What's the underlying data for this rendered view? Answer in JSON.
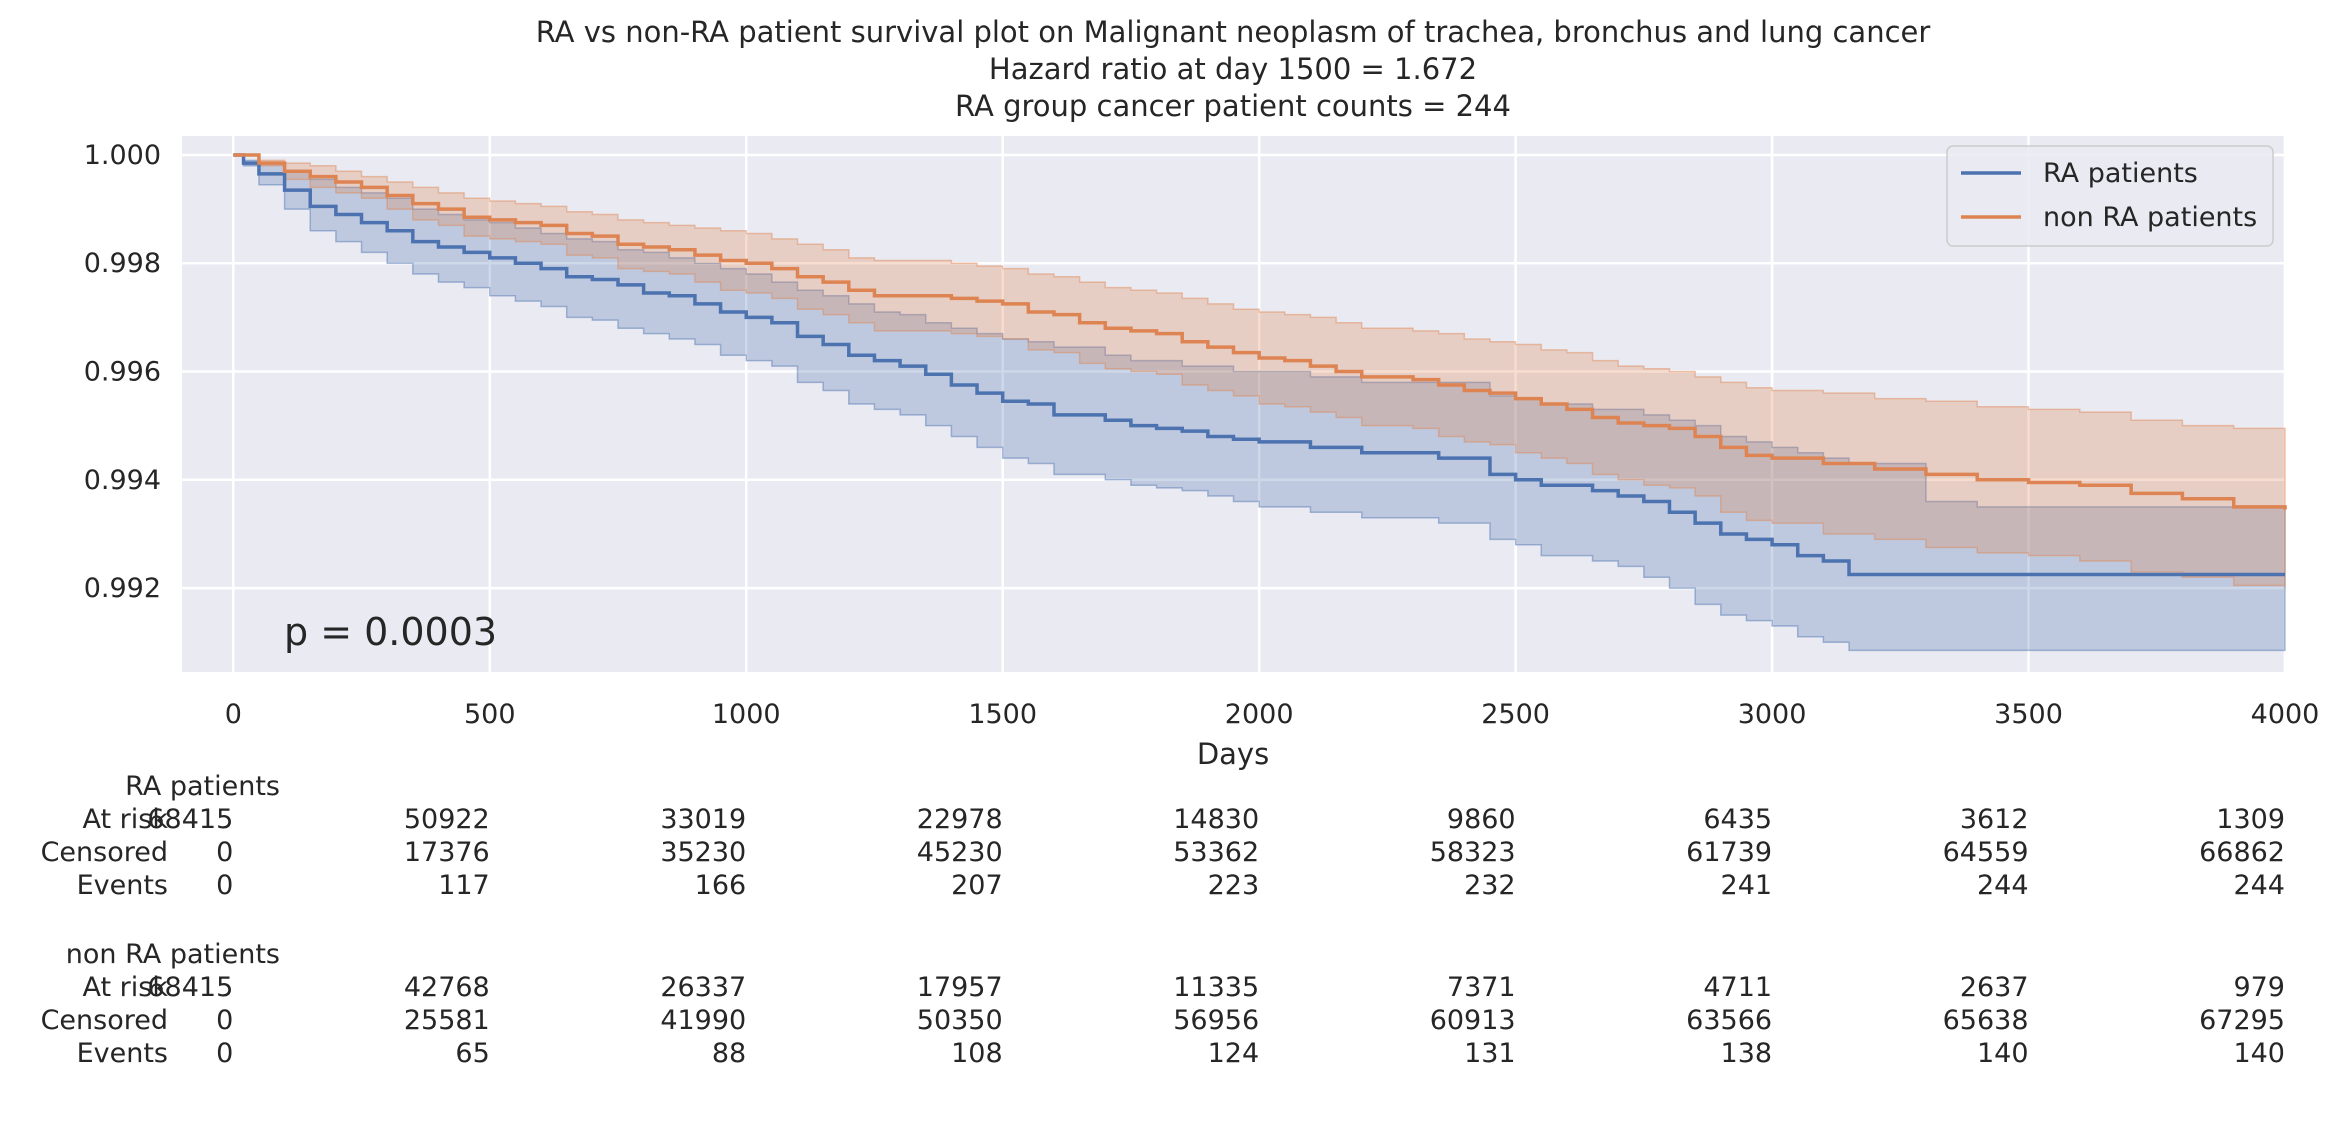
{
  "chart_data": {
    "type": "line",
    "title": [
      "RA vs non-RA patient survival plot on Malignant neoplasm of trachea, bronchus and lung cancer",
      "Hazard ratio at day 1500 = 1.672",
      "RA group cancer patient counts = 244"
    ],
    "xlabel": "Days",
    "ylabel": "",
    "xlim": [
      -100,
      4000
    ],
    "ylim": [
      0.99045,
      1.00035
    ],
    "x_ticks": [
      0,
      500,
      1000,
      1500,
      2000,
      2500,
      3000,
      3500,
      4000
    ],
    "y_ticks": [
      0.992,
      0.994,
      0.996,
      0.998,
      1.0
    ],
    "y_tick_labels": [
      "0.992",
      "0.994",
      "0.996",
      "0.998",
      "1.000"
    ],
    "grid": true,
    "legend_position": "top-right",
    "annotation": "p = 0.0003",
    "colors": {
      "background": "#eaeaf2",
      "grid": "#ffffff",
      "ra": "#4c72b0",
      "non_ra": "#dd8452"
    },
    "series": [
      {
        "name": "RA patients",
        "color": "#4c72b0",
        "x": [
          0,
          20,
          50,
          100,
          150,
          200,
          250,
          300,
          350,
          400,
          450,
          500,
          550,
          600,
          650,
          700,
          750,
          800,
          850,
          900,
          950,
          1000,
          1050,
          1100,
          1150,
          1200,
          1250,
          1300,
          1350,
          1400,
          1450,
          1500,
          1550,
          1600,
          1650,
          1700,
          1750,
          1800,
          1850,
          1900,
          1950,
          2000,
          2100,
          2200,
          2300,
          2350,
          2450,
          2500,
          2550,
          2650,
          2700,
          2750,
          2800,
          2850,
          2900,
          2950,
          3000,
          3050,
          3100,
          3150,
          3200,
          3300,
          3400,
          3500,
          3600,
          3700,
          3800,
          3900,
          4000
        ],
        "y": [
          1.0,
          0.99985,
          0.99965,
          0.99935,
          0.99905,
          0.9989,
          0.99875,
          0.9986,
          0.9984,
          0.9983,
          0.9982,
          0.9981,
          0.998,
          0.9979,
          0.99775,
          0.9977,
          0.9976,
          0.99745,
          0.9974,
          0.99725,
          0.9971,
          0.997,
          0.9969,
          0.99665,
          0.9965,
          0.9963,
          0.9962,
          0.9961,
          0.99595,
          0.99575,
          0.9956,
          0.99545,
          0.9954,
          0.9952,
          0.9952,
          0.9951,
          0.995,
          0.99495,
          0.9949,
          0.9948,
          0.99475,
          0.9947,
          0.9946,
          0.9945,
          0.9945,
          0.9944,
          0.9941,
          0.994,
          0.9939,
          0.9938,
          0.9937,
          0.9936,
          0.9934,
          0.9932,
          0.993,
          0.9929,
          0.9928,
          0.9926,
          0.9925,
          0.99225,
          0.99225,
          0.99225,
          0.99225,
          0.99225,
          0.99225,
          0.99225,
          0.99225,
          0.99225,
          0.99225
        ],
        "ci_upper": [
          1.0,
          0.9999,
          0.99985,
          0.9997,
          0.99955,
          0.9994,
          0.9993,
          0.9992,
          0.999,
          0.9989,
          0.9988,
          0.99875,
          0.99865,
          0.99855,
          0.99845,
          0.9984,
          0.99825,
          0.9982,
          0.9981,
          0.998,
          0.9979,
          0.9978,
          0.99765,
          0.9975,
          0.9974,
          0.99725,
          0.9971,
          0.99705,
          0.9969,
          0.9968,
          0.9967,
          0.9966,
          0.99655,
          0.99645,
          0.99645,
          0.9963,
          0.9962,
          0.9962,
          0.9961,
          0.9961,
          0.996,
          0.996,
          0.9959,
          0.9958,
          0.9958,
          0.9958,
          0.99555,
          0.9955,
          0.9954,
          0.9953,
          0.9953,
          0.9952,
          0.9951,
          0.995,
          0.9948,
          0.9947,
          0.9946,
          0.9945,
          0.9944,
          0.9943,
          0.9943,
          0.9936,
          0.9935,
          0.9935,
          0.9935,
          0.9935,
          0.9935,
          0.9935,
          0.9935
        ],
        "ci_lower": [
          1.0,
          0.9998,
          0.99945,
          0.999,
          0.9986,
          0.9984,
          0.9982,
          0.998,
          0.9978,
          0.99765,
          0.99755,
          0.9974,
          0.9973,
          0.9972,
          0.997,
          0.99695,
          0.9968,
          0.9967,
          0.9966,
          0.9965,
          0.9963,
          0.9962,
          0.9961,
          0.9958,
          0.99565,
          0.9954,
          0.9953,
          0.9952,
          0.995,
          0.9948,
          0.9946,
          0.9944,
          0.9943,
          0.9941,
          0.9941,
          0.994,
          0.9939,
          0.99385,
          0.9938,
          0.9937,
          0.9936,
          0.9935,
          0.9934,
          0.9933,
          0.9933,
          0.9932,
          0.9929,
          0.9928,
          0.9926,
          0.9925,
          0.9924,
          0.9922,
          0.992,
          0.9917,
          0.9915,
          0.9914,
          0.9913,
          0.9911,
          0.991,
          0.99085,
          0.99085,
          0.99085,
          0.99085,
          0.99085,
          0.99085,
          0.99085,
          0.99085,
          0.99085,
          0.99085
        ]
      },
      {
        "name": "non RA patients",
        "color": "#dd8452",
        "x": [
          0,
          50,
          100,
          150,
          200,
          250,
          300,
          350,
          400,
          450,
          500,
          550,
          600,
          650,
          700,
          750,
          800,
          850,
          900,
          950,
          1000,
          1050,
          1100,
          1150,
          1200,
          1250,
          1300,
          1350,
          1400,
          1450,
          1500,
          1550,
          1600,
          1650,
          1700,
          1750,
          1800,
          1850,
          1900,
          1950,
          2000,
          2050,
          2100,
          2150,
          2200,
          2250,
          2300,
          2350,
          2400,
          2450,
          2500,
          2550,
          2600,
          2650,
          2700,
          2750,
          2800,
          2850,
          2900,
          2950,
          3000,
          3100,
          3200,
          3300,
          3400,
          3500,
          3600,
          3700,
          3800,
          3900,
          4000
        ],
        "y": [
          1.0,
          0.99985,
          0.9997,
          0.9996,
          0.9995,
          0.9994,
          0.99925,
          0.9991,
          0.999,
          0.99885,
          0.9988,
          0.99875,
          0.9987,
          0.99855,
          0.9985,
          0.99835,
          0.9983,
          0.99825,
          0.99815,
          0.99805,
          0.998,
          0.9979,
          0.99775,
          0.99765,
          0.9975,
          0.9974,
          0.9974,
          0.9974,
          0.99735,
          0.9973,
          0.99725,
          0.9971,
          0.99705,
          0.9969,
          0.9968,
          0.99675,
          0.9967,
          0.99655,
          0.99645,
          0.99635,
          0.99625,
          0.9962,
          0.9961,
          0.996,
          0.9959,
          0.9959,
          0.99585,
          0.99575,
          0.99565,
          0.9956,
          0.9955,
          0.9954,
          0.9953,
          0.99515,
          0.99505,
          0.995,
          0.99495,
          0.9948,
          0.9946,
          0.99445,
          0.9944,
          0.9943,
          0.9942,
          0.9941,
          0.994,
          0.99395,
          0.9939,
          0.99375,
          0.99365,
          0.9935,
          0.99345
        ],
        "ci_upper": [
          1.0,
          0.9999,
          0.99985,
          0.9998,
          0.9997,
          0.9996,
          0.9995,
          0.9994,
          0.9993,
          0.9992,
          0.99915,
          0.9991,
          0.99905,
          0.99895,
          0.9989,
          0.9988,
          0.99875,
          0.9987,
          0.99865,
          0.9986,
          0.99855,
          0.99845,
          0.99835,
          0.99825,
          0.9981,
          0.99805,
          0.99805,
          0.99805,
          0.998,
          0.99795,
          0.9979,
          0.9978,
          0.99775,
          0.99765,
          0.99755,
          0.9975,
          0.99745,
          0.99735,
          0.99725,
          0.99715,
          0.9971,
          0.99705,
          0.997,
          0.9969,
          0.9968,
          0.9968,
          0.99675,
          0.9967,
          0.9966,
          0.99655,
          0.9965,
          0.9964,
          0.99635,
          0.9962,
          0.9961,
          0.99605,
          0.996,
          0.9959,
          0.9958,
          0.9957,
          0.99565,
          0.9956,
          0.9955,
          0.99545,
          0.99535,
          0.9953,
          0.99525,
          0.9951,
          0.995,
          0.99495,
          0.9949
        ],
        "ci_lower": [
          1.0,
          0.9998,
          0.99955,
          0.9994,
          0.9993,
          0.9992,
          0.999,
          0.9988,
          0.9987,
          0.9985,
          0.99845,
          0.9984,
          0.99835,
          0.99815,
          0.9981,
          0.9979,
          0.99785,
          0.9978,
          0.99765,
          0.9975,
          0.99745,
          0.99735,
          0.99715,
          0.99705,
          0.9969,
          0.99675,
          0.99675,
          0.99675,
          0.9967,
          0.99665,
          0.9966,
          0.9964,
          0.99635,
          0.99615,
          0.99605,
          0.996,
          0.99595,
          0.99575,
          0.99565,
          0.99555,
          0.9954,
          0.99535,
          0.99525,
          0.99515,
          0.995,
          0.995,
          0.99495,
          0.9948,
          0.9947,
          0.99465,
          0.9945,
          0.9944,
          0.9943,
          0.9941,
          0.994,
          0.9939,
          0.99385,
          0.9937,
          0.9934,
          0.99325,
          0.9932,
          0.993,
          0.9929,
          0.99275,
          0.99265,
          0.9926,
          0.9925,
          0.9923,
          0.9922,
          0.99205,
          0.992
        ]
      }
    ],
    "risk_table": {
      "groups": [
        {
          "name": "RA patients",
          "rows": [
            {
              "label": "At risk",
              "values": [
                68415,
                50922,
                33019,
                22978,
                14830,
                9860,
                6435,
                3612,
                1309
              ]
            },
            {
              "label": "Censored",
              "values": [
                0,
                17376,
                35230,
                45230,
                53362,
                58323,
                61739,
                64559,
                66862
              ]
            },
            {
              "label": "Events",
              "values": [
                0,
                117,
                166,
                207,
                223,
                232,
                241,
                244,
                244
              ]
            }
          ]
        },
        {
          "name": "non RA patients",
          "rows": [
            {
              "label": "At risk",
              "values": [
                68415,
                42768,
                26337,
                17957,
                11335,
                7371,
                4711,
                2637,
                979
              ]
            },
            {
              "label": "Censored",
              "values": [
                0,
                25581,
                41990,
                50350,
                56956,
                60913,
                63566,
                65638,
                67295
              ]
            },
            {
              "label": "Events",
              "values": [
                0,
                65,
                88,
                108,
                124,
                131,
                138,
                140,
                140
              ]
            }
          ]
        }
      ]
    }
  }
}
